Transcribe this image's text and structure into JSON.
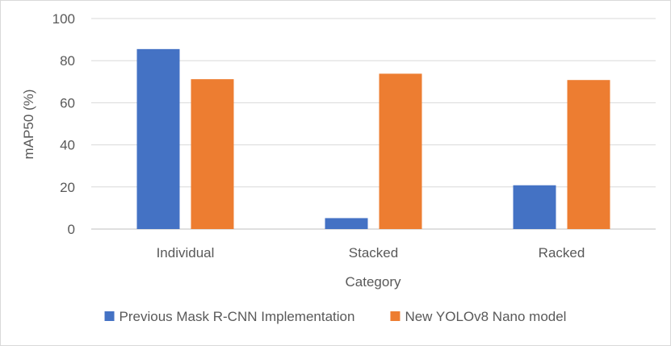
{
  "chart_data": {
    "type": "bar",
    "title": "",
    "xlabel": "Category",
    "ylabel": "mAP50 (%)",
    "ylim": [
      0,
      100
    ],
    "yticks": [
      0,
      20,
      40,
      60,
      80,
      100
    ],
    "grid": true,
    "legend_position": "bottom",
    "categories": [
      "Individual",
      "Stacked",
      "Racked"
    ],
    "series": [
      {
        "name": "Previous Mask R-CNN Implementation",
        "color": "#4472C4",
        "values": [
          85.5,
          5.2,
          20.8
        ]
      },
      {
        "name": "New YOLOv8 Nano model",
        "color": "#ED7D31",
        "values": [
          71.2,
          73.8,
          70.8
        ]
      }
    ]
  }
}
